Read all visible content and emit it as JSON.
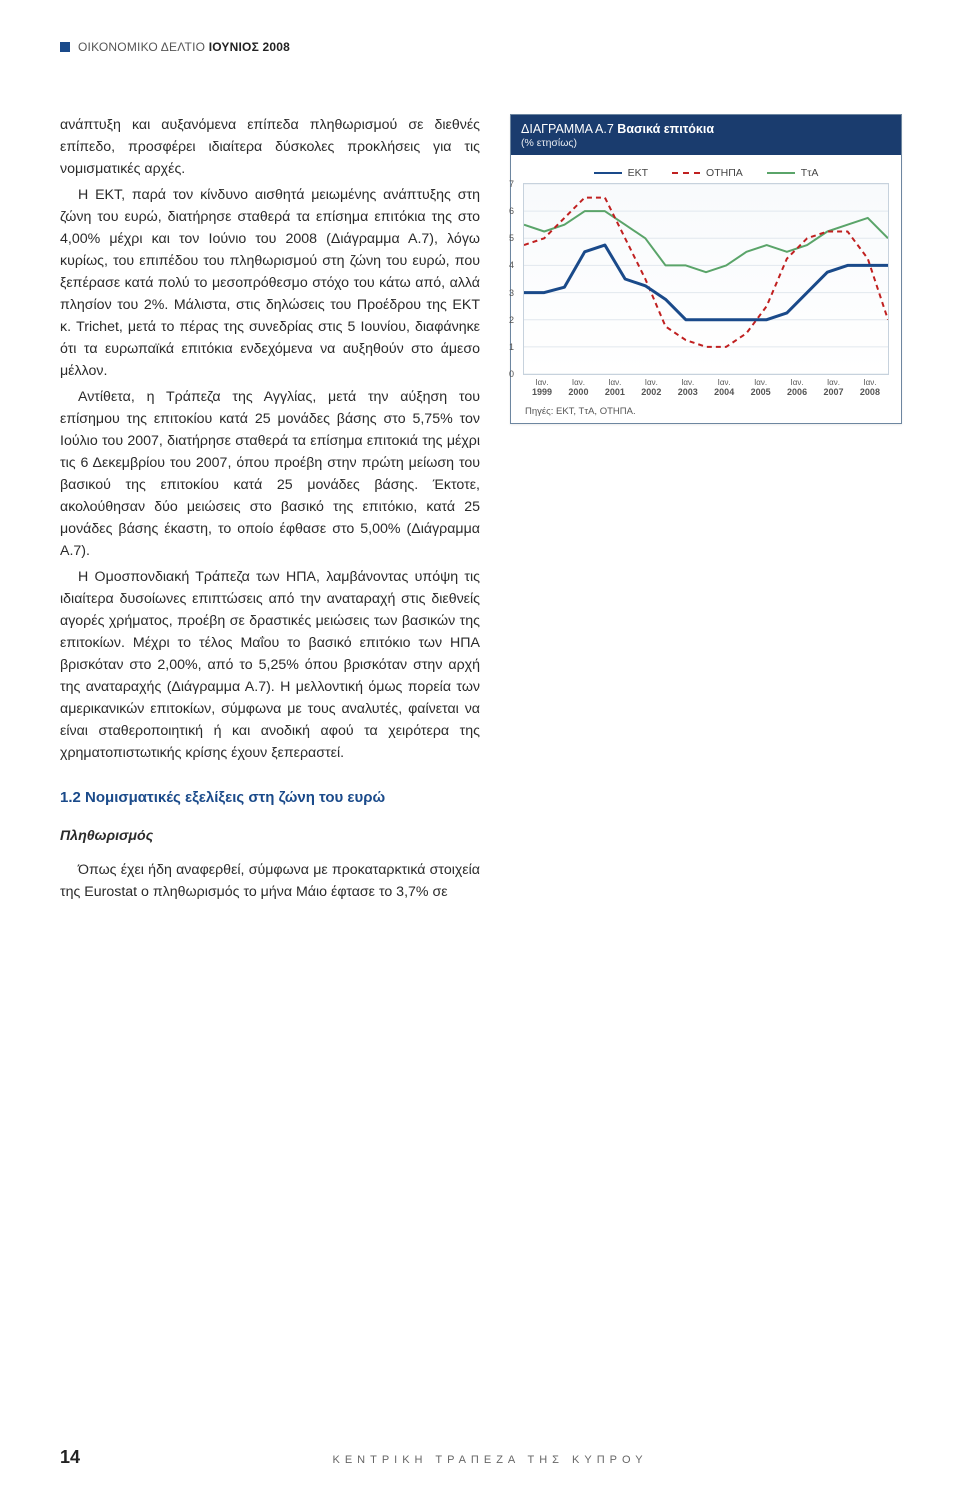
{
  "header": {
    "light": "ΟΙΚΟΝΟΜΙΚΟ ΔΕΛΤΙΟ",
    "bold": "ΙΟΥΝΙΟΣ 2008"
  },
  "body": {
    "p1": "ανάπτυξη και αυξανόμενα επίπεδα πληθωρισμού σε διεθνές επίπεδο, προσφέρει ιδιαίτερα δύσκολες προκλήσεις για τις νομισματικές αρχές.",
    "p2": "Η ΕΚΤ, παρά τον κίνδυνο αισθητά μειωμένης ανάπτυξης στη ζώνη του ευρώ, διατήρησε σταθερά τα επίσημα επιτόκια της στο 4,00% μέχρι και τον Ιούνιο του 2008 (Διάγραμμα Α.7), λόγω κυρίως, του επιπέδου του πληθωρισμού στη ζώνη του ευρώ, που ξεπέρασε κατά πολύ το μεσοπρόθεσμο στόχο του κάτω από, αλλά πλησίον του 2%. Μάλιστα, στις δηλώσεις του Προέδρου της ΕΚΤ κ. Trichet, μετά το πέρας της συνεδρίας στις 5 Ιουνίου, διαφάνηκε ότι τα ευρωπαϊκά επιτόκια ενδεχόμενα να αυξηθούν στο άμεσο μέλλον.",
    "p3": "Αντίθετα, η Τράπεζα της Αγγλίας, μετά την αύξηση του επίσημου της επιτοκίου κατά 25 μονάδες βάσης στο 5,75% τον Ιούλιο του 2007, διατήρησε σταθερά τα επίσημα επιτοκιά της μέχρι τις 6 Δεκεμβρίου του 2007, όπου προέβη στην πρώτη μείωση του βασικού της επιτοκίου κατά 25 μονάδες βάσης. Έκτοτε, ακολούθησαν δύο μειώσεις στο βασικό της επιτόκιο, κατά 25 μονάδες βάσης έκαστη, το οποίο έφθασε στο 5,00% (Διάγραμμα Α.7).",
    "p4": "Η Ομοσπονδιακή Τράπεζα των ΗΠΑ, λαμβάνοντας υπόψη τις ιδιαίτερα δυσοίωνες επιπτώσεις από την αναταραχή στις διεθνείς αγορές χρήματος, προέβη σε δραστικές μειώσεις των βασικών της επιτοκίων. Μέχρι το τέλος Μαΐου το βασικό επιτόκιο των ΗΠΑ βρισκόταν στο 2,00%, από το 5,25% όπου βρισκόταν στην αρχή της αναταραχής (Διάγραμμα Α.7). Η μελλοντική όμως πορεία των αμερικανικών επιτοκίων, σύμφωνα με τους αναλυτές, φαίνεται να είναι σταθεροποιητική ή και ανοδική αφού τα χειρότερα της χρηματοπιστωτικής κρίσης έχουν ξεπεραστεί.",
    "section_1_2": "1.2 Νομισματικές εξελίξεις στη ζώνη του ευρώ",
    "sub_inflation": "Πληθωρισμός",
    "p5": "Όπως έχει ήδη αναφερθεί, σύμφωνα με προκαταρκτικά στοιχεία της Eurostat ο πληθωρισμός το μήνα Μάιο έφτασε το 3,7% σε"
  },
  "chart": {
    "title_pre": "ΔΙΑΓΡΑΜΜΑ Α.7 ",
    "title_bold": "Βασικά επιτόκια",
    "subtitle": "(% ετησίως)",
    "legend": {
      "ekt": {
        "label": "ΕΚΤ",
        "color": "#1a4a8a"
      },
      "othpa": {
        "label": "ΟΤΗΠΑ",
        "color": "#c02020",
        "dashed": true
      },
      "tta": {
        "label": "ΤτΑ",
        "color": "#5aa469"
      }
    },
    "y": {
      "min": 0,
      "max": 7,
      "ticks": [
        0,
        1,
        2,
        3,
        4,
        5,
        6,
        7
      ]
    },
    "x": {
      "month_label": "Ιαν.",
      "years": [
        "1999",
        "2000",
        "2001",
        "2002",
        "2003",
        "2004",
        "2005",
        "2006",
        "2007",
        "2008"
      ]
    },
    "series": {
      "ekt": [
        3.0,
        3.0,
        3.2,
        4.5,
        4.75,
        3.5,
        3.25,
        2.75,
        2.0,
        2.0,
        2.0,
        2.0,
        2.0,
        2.25,
        3.0,
        3.75,
        4.0,
        4.0,
        4.0
      ],
      "othpa": [
        4.75,
        5.0,
        5.75,
        6.5,
        6.5,
        5.0,
        3.5,
        1.75,
        1.25,
        1.0,
        1.0,
        1.5,
        2.5,
        4.25,
        5.0,
        5.25,
        5.25,
        4.25,
        2.0
      ],
      "tta": [
        5.5,
        5.25,
        5.5,
        6.0,
        6.0,
        5.5,
        5.0,
        4.0,
        4.0,
        3.75,
        4.0,
        4.5,
        4.75,
        4.5,
        4.75,
        5.25,
        5.5,
        5.75,
        5.0
      ]
    },
    "sources_label": "Πηγές: ΕΚΤ, ΤτΑ, ΟΤΗΠΑ."
  },
  "footer": {
    "page": "14",
    "org": "ΚΕΝΤΡΙΚΗ ΤΡΑΠΕΖΑ ΤΗΣ ΚΥΠΡΟΥ"
  }
}
